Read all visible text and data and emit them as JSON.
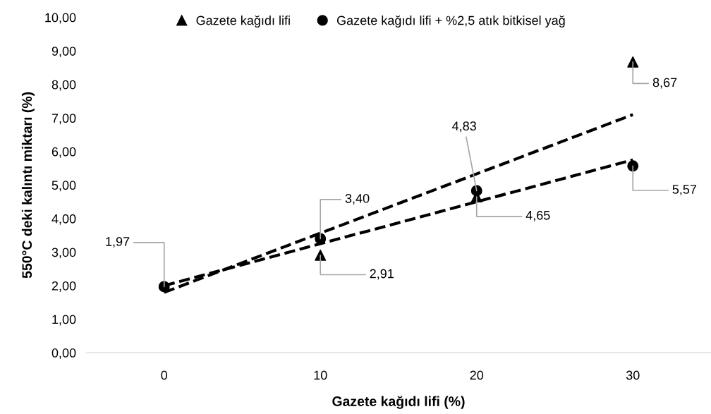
{
  "chart_data": {
    "type": "scatter",
    "xlabel": "Gazete kağıdı lifi (%)",
    "ylabel": "550°C deki kalıntı miktarı (%)",
    "categories": [
      "0",
      "10",
      "20",
      "30"
    ],
    "ylim": [
      0,
      10
    ],
    "yticks": [
      {
        "value": 0,
        "label": "0,00"
      },
      {
        "value": 1,
        "label": "1,00"
      },
      {
        "value": 2,
        "label": "2,00"
      },
      {
        "value": 3,
        "label": "3,00"
      },
      {
        "value": 4,
        "label": "4,00"
      },
      {
        "value": 5,
        "label": "5,00"
      },
      {
        "value": 6,
        "label": "6,00"
      },
      {
        "value": 7,
        "label": "7,00"
      },
      {
        "value": 8,
        "label": "8,00"
      },
      {
        "value": 9,
        "label": "9,00"
      },
      {
        "value": 10,
        "label": "10,00"
      }
    ],
    "grid": false,
    "legend": "top",
    "series": [
      {
        "name": "Gazete kağıdı lifi",
        "color": "#000000",
        "marker": "triangle",
        "values": [
          null,
          2.91,
          4.65,
          8.67
        ],
        "value_labels": [
          null,
          "2,91",
          "4,65",
          "8,67"
        ]
      },
      {
        "name": "Gazete kağıdı lifi + %2,5 atık bitkisel yağ",
        "color": "#000000",
        "marker": "circle",
        "values": [
          1.97,
          3.4,
          4.83,
          5.57
        ],
        "value_labels": [
          "1,97",
          "3,40",
          "4,83",
          "5,57"
        ]
      },
      {
        "type": "line",
        "color": "#000000",
        "line_style": "dashed",
        "marker": "none",
        "x": [
          "0",
          "30"
        ],
        "values": [
          1.8,
          7.1
        ]
      },
      {
        "type": "line",
        "color": "#000000",
        "line_style": "dashed",
        "marker": "none",
        "x": [
          "0",
          "30"
        ],
        "values": [
          2.0,
          5.75
        ]
      }
    ]
  }
}
